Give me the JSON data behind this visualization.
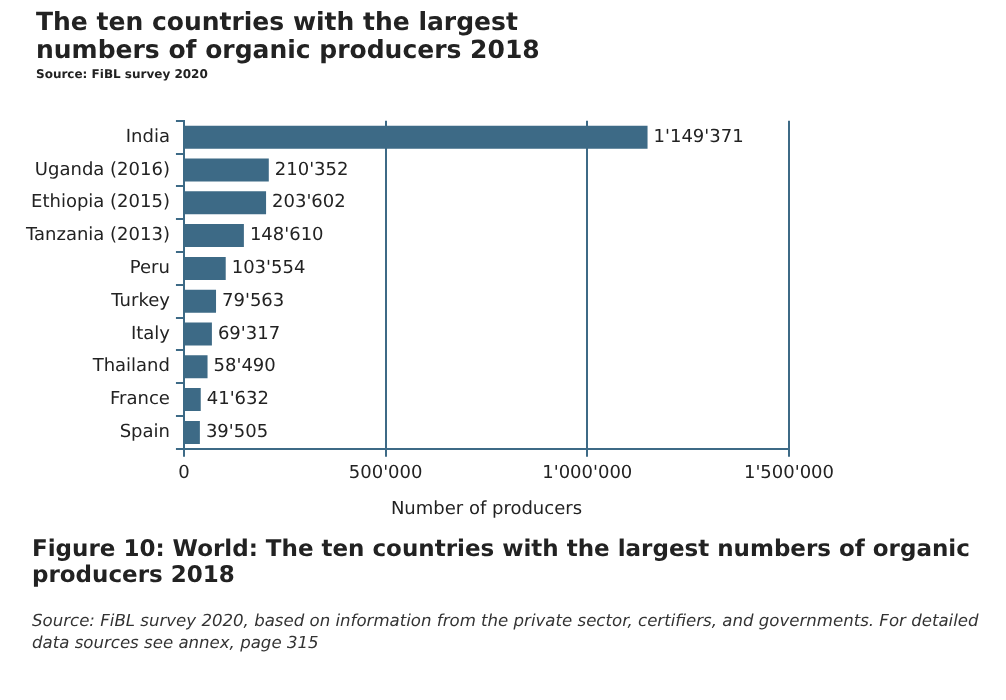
{
  "chart_data": {
    "type": "bar",
    "orientation": "horizontal",
    "title": "The ten countries with the largest numbers of organic producers 2018",
    "subtitle": "Source: FiBL survey 2020",
    "xlabel": "Number of producers",
    "categories": [
      "India",
      "Uganda (2016)",
      "Ethiopia (2015)",
      "Tanzania (2013)",
      "Peru",
      "Turkey",
      "Italy",
      "Thailand",
      "France",
      "Spain"
    ],
    "values": [
      1149371,
      210352,
      203602,
      148610,
      103554,
      79563,
      69317,
      58490,
      41632,
      39505
    ],
    "value_labels": [
      "1'149'371",
      "210'352",
      "203'602",
      "148'610",
      "103'554",
      "79'563",
      "69'317",
      "58'490",
      "41'632",
      "39'505"
    ],
    "color": "#3d6a86",
    "xlim": [
      0,
      1500000
    ],
    "xticks": [
      0,
      {
        "value": 500000,
        "label": "500'000"
      },
      {
        "value": 1000000,
        "label": "1'000'000"
      },
      {
        "value": 1500000,
        "label": "1'500'000"
      }
    ],
    "grid": "x",
    "annotations": [
      "Figure 10: World: The ten countries with the largest numbers of organic producers 2018",
      "Source: FiBL survey 2020, based on information from the private sector, certifiers, and governments. For detailed data sources see annex, page 315"
    ]
  }
}
